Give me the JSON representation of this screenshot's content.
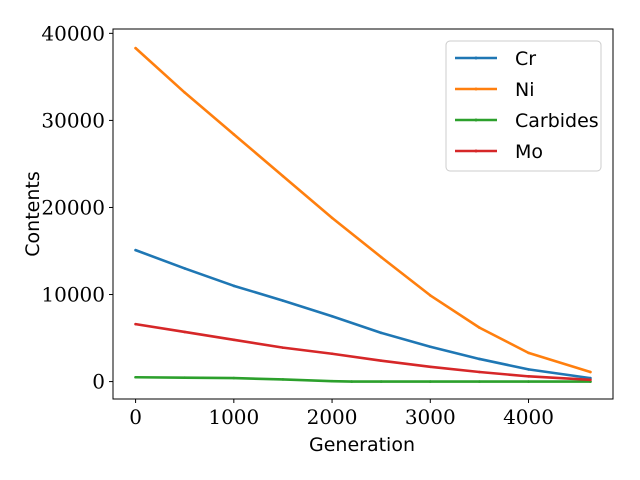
{
  "chart_data": {
    "type": "line",
    "title": "",
    "xlabel": "Generation",
    "ylabel": "Contents",
    "xlim": [
      -230,
      4860
    ],
    "ylim": [
      -2000,
      40500
    ],
    "xticks": [
      0,
      1000,
      2000,
      3000,
      4000
    ],
    "yticks": [
      0,
      10000,
      20000,
      30000,
      40000
    ],
    "legend_position": "top-right",
    "grid": false,
    "series": [
      {
        "name": "Cr",
        "color": "#1f77b4",
        "x": [
          0,
          500,
          1000,
          1500,
          2000,
          2500,
          3000,
          3500,
          4000,
          4630
        ],
        "y": [
          15100,
          13000,
          11000,
          9300,
          7500,
          5600,
          4000,
          2600,
          1400,
          400
        ]
      },
      {
        "name": "Ni",
        "color": "#ff7f0e",
        "x": [
          0,
          500,
          1000,
          1500,
          2000,
          2500,
          3000,
          3500,
          4000,
          4630
        ],
        "y": [
          38300,
          33200,
          28400,
          23600,
          18800,
          14300,
          9900,
          6200,
          3300,
          1100
        ]
      },
      {
        "name": "Carbides",
        "color": "#2ca02c",
        "x": [
          0,
          500,
          1000,
          1500,
          2000,
          2200,
          2500,
          3000,
          3500,
          4000,
          4630
        ],
        "y": [
          500,
          450,
          400,
          250,
          50,
          0,
          0,
          0,
          0,
          0,
          0
        ]
      },
      {
        "name": "Mo",
        "color": "#d62728",
        "x": [
          0,
          500,
          1000,
          1500,
          2000,
          2500,
          3000,
          3500,
          4000,
          4630
        ],
        "y": [
          6600,
          5700,
          4800,
          3900,
          3200,
          2400,
          1700,
          1100,
          600,
          200
        ]
      }
    ]
  }
}
